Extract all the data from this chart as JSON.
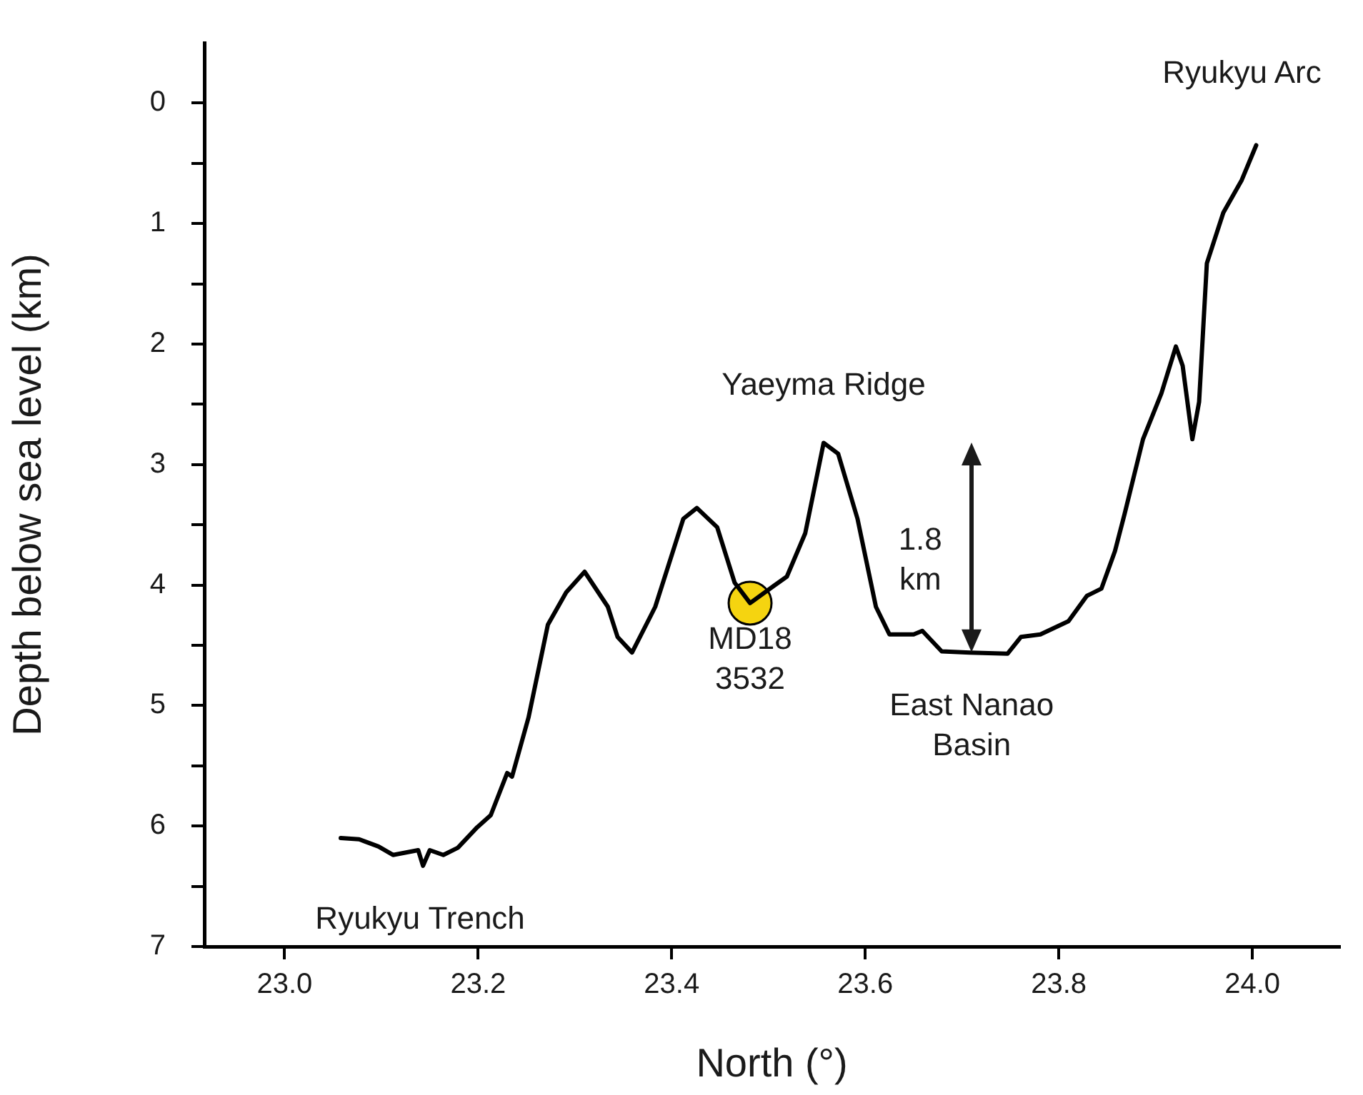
{
  "chart_data": {
    "type": "line",
    "xlabel": "North (°)",
    "ylabel": "Depth below sea level (km)",
    "xlim": [
      22.917,
      24.09
    ],
    "ylim": [
      7,
      -0.5
    ],
    "xticks": [
      {
        "value": 23,
        "label": "23.0"
      },
      {
        "value": 23.2,
        "label": "23.2"
      },
      {
        "value": 23.4,
        "label": "23.4"
      },
      {
        "value": 23.6,
        "label": "23.6"
      },
      {
        "value": 23.8,
        "label": "23.8"
      },
      {
        "value": 24,
        "label": "24.0"
      }
    ],
    "yticks": [
      0,
      {
        "value": 0.5,
        "label": null
      },
      1,
      {
        "value": 1.5,
        "label": null
      },
      2,
      {
        "value": 2.5,
        "label": null
      },
      3,
      {
        "value": 3.5,
        "label": null
      },
      4,
      {
        "value": 4.5,
        "label": null
      },
      5,
      {
        "value": 5.5,
        "label": null
      },
      6,
      {
        "value": 6.5,
        "label": null
      },
      7
    ],
    "grid": false,
    "legend": false,
    "series": [
      {
        "color": "#000000",
        "marker": "none",
        "line_style": "solid",
        "x": [
          23.058,
          23.077,
          23.097,
          23.112,
          23.138,
          23.143,
          23.15,
          23.164,
          23.179,
          23.199,
          23.213,
          23.23,
          23.235,
          23.252,
          23.272,
          23.291,
          23.31,
          23.334,
          23.344,
          23.359,
          23.378,
          23.383,
          23.412,
          23.426,
          23.447,
          23.465,
          23.481,
          23.505,
          23.519,
          23.538,
          23.557,
          23.572,
          23.592,
          23.611,
          23.625,
          23.65,
          23.659,
          23.679,
          23.708,
          23.747,
          23.761,
          23.781,
          23.81,
          23.829,
          23.844,
          23.858,
          23.868,
          23.887,
          23.906,
          23.921,
          23.928,
          23.938,
          23.945,
          23.953,
          23.97,
          23.989,
          24.004
        ],
        "values": [
          6.1,
          6.11,
          6.17,
          6.24,
          6.2,
          6.33,
          6.2,
          6.24,
          6.18,
          6.01,
          5.91,
          5.56,
          5.59,
          5.1,
          4.33,
          4.06,
          3.89,
          4.18,
          4.43,
          4.56,
          4.26,
          4.18,
          3.45,
          3.36,
          3.52,
          3.98,
          4.15,
          4.01,
          3.93,
          3.57,
          2.82,
          2.91,
          3.45,
          4.18,
          4.41,
          4.41,
          4.38,
          4.55,
          4.56,
          4.57,
          4.43,
          4.41,
          4.3,
          4.09,
          4.03,
          3.72,
          3.41,
          2.79,
          2.41,
          2.02,
          2.18,
          2.79,
          2.48,
          1.33,
          0.91,
          0.64,
          0.35
        ]
      },
      {
        "type": "scatter",
        "color": "#f5d410",
        "marker": "circle",
        "x": [
          23.481
        ],
        "values": [
          4.15
        ]
      }
    ],
    "annotations": [
      {
        "text": "Ryukyu Trench",
        "x": 23.14,
        "y": 6.33
      },
      {
        "text": "MD18\n3532",
        "x": 23.481,
        "y": 4.15
      },
      {
        "text": "Yaeyma Ridge",
        "x": 23.557,
        "y": 2.82
      },
      {
        "text": "1.8\nkm",
        "x": 23.71,
        "y": 4.56
      },
      {
        "text": "East Nanao\nBasin",
        "x": 23.71,
        "y": 4.56
      },
      {
        "text": "Ryukyu Arc",
        "x": 24.004,
        "y": 0.35
      }
    ]
  }
}
